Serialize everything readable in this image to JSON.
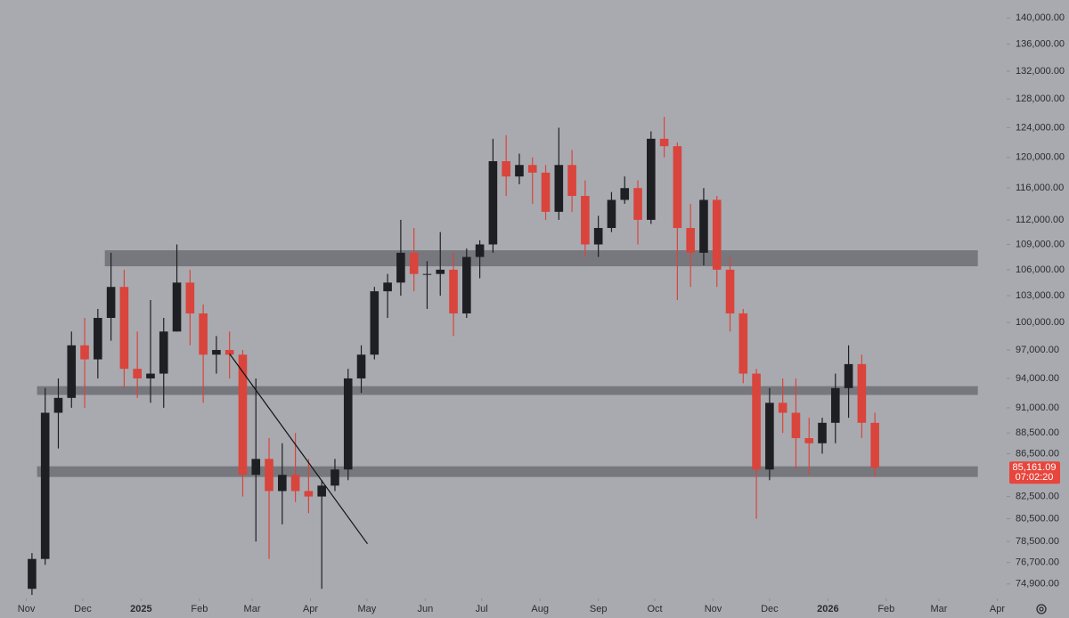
{
  "chart_data": {
    "type": "candlestick",
    "ylog": true,
    "up_color": "#1e1f23",
    "down_color": "#d9443c",
    "zone_color": "#6f7076",
    "x": [
      3,
      10,
      17,
      24,
      31,
      38,
      45,
      52,
      59,
      66,
      73,
      80,
      87,
      94,
      101,
      108,
      115,
      122,
      129,
      136,
      143,
      150,
      157,
      164,
      171,
      178,
      185,
      192,
      199,
      206,
      213,
      220,
      227,
      234,
      241,
      248,
      255,
      262,
      269,
      276,
      283,
      290,
      297,
      304,
      311,
      318,
      325,
      332,
      339,
      346,
      353,
      360,
      367,
      374,
      381,
      388,
      395,
      402,
      409,
      416,
      423,
      430,
      437,
      444,
      451
    ],
    "open": [
      74500,
      77000,
      90500,
      92000,
      97500,
      96000,
      100500,
      104000,
      95000,
      94000,
      94500,
      99000,
      104500,
      101000,
      96500,
      97000,
      96500,
      84500,
      86000,
      83000,
      84500,
      83000,
      82500,
      83500,
      85000,
      94000,
      96500,
      103500,
      104500,
      108000,
      105500,
      105500,
      106000,
      101000,
      107500,
      109000,
      119500,
      117500,
      119000,
      118000,
      113000,
      119000,
      115000,
      109000,
      111000,
      114500,
      116000,
      112000,
      122500,
      121500,
      111000,
      108000,
      114500,
      106000,
      101000,
      94500,
      85000,
      91500,
      90500,
      88000,
      87500,
      89500,
      93000,
      95500,
      89500
    ],
    "high": [
      77500,
      93000,
      94000,
      99000,
      100500,
      101500,
      108000,
      106000,
      99000,
      102500,
      100500,
      109000,
      106000,
      102000,
      98500,
      99000,
      97000,
      94000,
      88000,
      87500,
      88500,
      86000,
      84000,
      86000,
      95000,
      97500,
      104000,
      105500,
      112000,
      111000,
      107000,
      110500,
      108000,
      108500,
      109500,
      122500,
      123000,
      120500,
      120000,
      119000,
      124000,
      121000,
      117000,
      112500,
      115500,
      117500,
      117000,
      123500,
      125500,
      122000,
      114000,
      116000,
      115000,
      107500,
      101500,
      95000,
      93000,
      94000,
      94000,
      90000,
      90000,
      94500,
      97500,
      96500,
      90500
    ],
    "low": [
      74000,
      76500,
      87000,
      91000,
      91000,
      94000,
      98000,
      93000,
      92000,
      91500,
      91000,
      99000,
      97500,
      91500,
      94500,
      94000,
      82500,
      78500,
      77000,
      80000,
      82000,
      81000,
      74500,
      83000,
      84000,
      92500,
      96000,
      100500,
      103000,
      103500,
      101500,
      103000,
      98500,
      100500,
      105000,
      108000,
      115000,
      116500,
      114000,
      112000,
      112000,
      113000,
      107500,
      107500,
      110500,
      114000,
      109000,
      111500,
      120000,
      102500,
      104000,
      106500,
      104000,
      99000,
      93500,
      80500,
      84000,
      88500,
      85000,
      84500,
      86500,
      87500,
      90000,
      88000,
      84300
    ],
    "close": [
      77000,
      90500,
      92000,
      97500,
      96000,
      100500,
      104000,
      95000,
      94000,
      94500,
      99000,
      104500,
      101000,
      96500,
      97000,
      96500,
      84500,
      86000,
      83000,
      84500,
      83000,
      82500,
      83500,
      85000,
      94000,
      96500,
      103500,
      104500,
      108000,
      105500,
      105500,
      106000,
      101000,
      107500,
      109000,
      119500,
      117500,
      119000,
      118000,
      113000,
      119000,
      115000,
      109000,
      111000,
      114500,
      116000,
      112000,
      122500,
      121500,
      111000,
      108000,
      114500,
      106000,
      101000,
      94500,
      85000,
      91500,
      90500,
      88000,
      87500,
      89500,
      93000,
      95500,
      89500,
      85161.09
    ],
    "xlim": [
      -14,
      521
    ],
    "ylim": [
      73860,
      142800
    ],
    "xticks": [
      {
        "value": 0,
        "label": "Nov"
      },
      {
        "value": 30,
        "label": "Dec"
      },
      {
        "value": 61,
        "label": "2025"
      },
      {
        "value": 92,
        "label": "Feb"
      },
      {
        "value": 120,
        "label": "Mar"
      },
      {
        "value": 151,
        "label": "Apr"
      },
      {
        "value": 181,
        "label": "May"
      },
      {
        "value": 212,
        "label": "Jun"
      },
      {
        "value": 242,
        "label": "Jul"
      },
      {
        "value": 273,
        "label": "Aug"
      },
      {
        "value": 304,
        "label": "Sep"
      },
      {
        "value": 334,
        "label": "Oct"
      },
      {
        "value": 365,
        "label": "Nov"
      },
      {
        "value": 395,
        "label": "Dec"
      },
      {
        "value": 426,
        "label": "2026"
      },
      {
        "value": 457,
        "label": "Feb"
      },
      {
        "value": 485,
        "label": "Mar"
      },
      {
        "value": 516,
        "label": "Apr"
      }
    ],
    "yticks": [
      {
        "value": 140000,
        "label": "140,000.00"
      },
      {
        "value": 136000,
        "label": "136,000.00"
      },
      {
        "value": 132000,
        "label": "132,000.00"
      },
      {
        "value": 128000,
        "label": "128,000.00"
      },
      {
        "value": 124000,
        "label": "124,000.00"
      },
      {
        "value": 120000,
        "label": "120,000.00"
      },
      {
        "value": 116000,
        "label": "116,000.00"
      },
      {
        "value": 112000,
        "label": "112,000.00"
      },
      {
        "value": 109000,
        "label": "109,000.00"
      },
      {
        "value": 106000,
        "label": "106,000.00"
      },
      {
        "value": 103000,
        "label": "103,000.00"
      },
      {
        "value": 100000,
        "label": "100,000.00"
      },
      {
        "value": 97000,
        "label": "97,000.00"
      },
      {
        "value": 94000,
        "label": "94,000.00"
      },
      {
        "value": 91000,
        "label": "91,000.00"
      },
      {
        "value": 88500,
        "label": "88,500.00"
      },
      {
        "value": 86500,
        "label": "86,500.00"
      },
      {
        "value": 82500,
        "label": "82,500.00"
      },
      {
        "value": 80500,
        "label": "80,500.00"
      },
      {
        "value": 78500,
        "label": "78,500.00"
      },
      {
        "value": 76700,
        "label": "76,700.00"
      },
      {
        "value": 74900,
        "label": "74,900.00"
      }
    ],
    "zones": [
      {
        "from": 106400,
        "to": 108300,
        "start": 41.7,
        "end": 505.7
      },
      {
        "from": 92300,
        "to": 93200,
        "start": 5.7,
        "end": 505.7
      },
      {
        "from": 84300,
        "to": 85300,
        "start": 5.7,
        "end": 505.7
      }
    ],
    "trendline": {
      "x": [
        108,
        181.3
      ],
      "y": [
        96600,
        78300
      ]
    },
    "price_label": {
      "value": 85161.09,
      "label": "85,161.09"
    },
    "countdown": "07:02:20"
  }
}
